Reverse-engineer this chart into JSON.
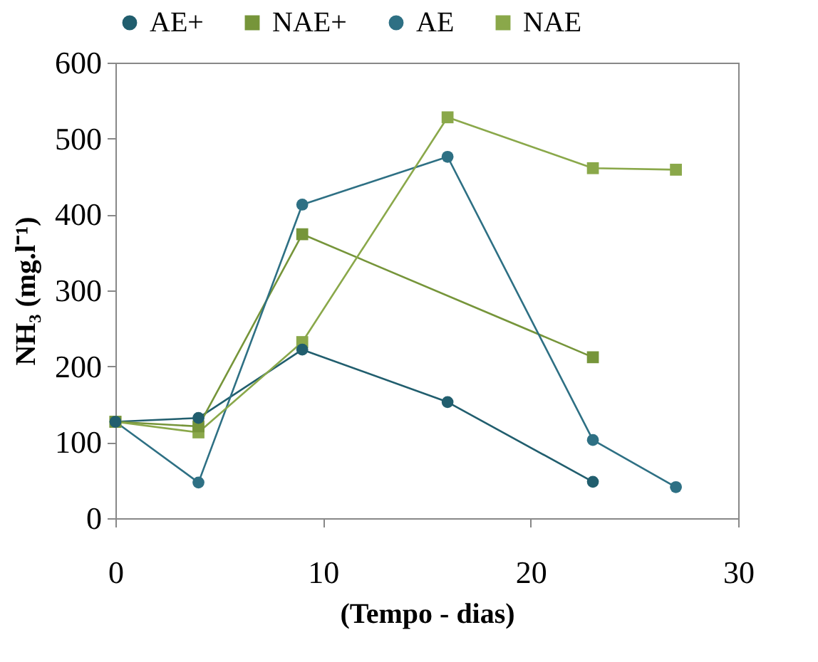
{
  "chart_data": {
    "type": "line",
    "xlabel": "(Tempo - dias)",
    "ylabel": "NH₃ (mg.l⁻¹)",
    "xlim": [
      0,
      30
    ],
    "xticks": [
      0,
      10,
      20,
      30
    ],
    "ylim": [
      0,
      600
    ],
    "yticks": [
      0,
      100,
      200,
      300,
      400,
      500,
      600
    ],
    "grid": false,
    "legend": "top",
    "series": [
      {
        "name": "AE+",
        "color": "#215e6e",
        "marker": "circle",
        "x": [
          0,
          4,
          9,
          16,
          23
        ],
        "values": [
          127,
          132,
          222,
          153,
          48
        ]
      },
      {
        "name": "NAE+",
        "color": "#76953a",
        "marker": "square",
        "x": [
          0,
          4,
          9,
          23
        ],
        "values": [
          127,
          121,
          374,
          212
        ]
      },
      {
        "name": "AE",
        "color": "#2e7084",
        "marker": "circle",
        "x": [
          0,
          4,
          9,
          16,
          23,
          27
        ],
        "values": [
          127,
          47,
          413,
          476,
          103,
          41
        ]
      },
      {
        "name": "NAE",
        "color": "#8aa84a",
        "marker": "square",
        "x": [
          0,
          4,
          9,
          16,
          23,
          27
        ],
        "values": [
          127,
          113,
          232,
          528,
          461,
          459
        ]
      }
    ]
  }
}
